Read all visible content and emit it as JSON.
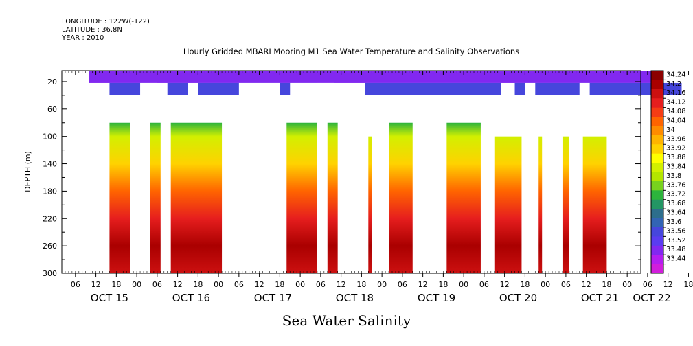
{
  "header": {
    "longitude": "LONGITUDE : 122W(-122)",
    "latitude": "LATITUDE : 36.8N",
    "year": "YEAR : 2010"
  },
  "chart_data": {
    "type": "heatmap",
    "title": "Hourly Gridded MBARI Mooring M1 Sea Water Temperature and Salinity Observations",
    "xlabel": "Sea Water Salinity",
    "ylabel": "DEPTH (m)",
    "x_range": [
      "2010-10-15T02:00",
      "2010-10-22T04:00"
    ],
    "ylim": [
      300,
      0
    ],
    "y_ticks": [
      20,
      60,
      100,
      140,
      180,
      220,
      260,
      300
    ],
    "x_hour_ticks": [
      "06",
      "12",
      "18",
      "00",
      "06",
      "12",
      "18",
      "00",
      "06",
      "12",
      "18",
      "00",
      "06",
      "12",
      "18",
      "00",
      "06",
      "12",
      "18",
      "00",
      "06",
      "12",
      "18",
      "00",
      "06",
      "12",
      "18",
      "00",
      "06",
      "12",
      "18",
      "00"
    ],
    "x_day_labels": [
      "OCT 15",
      "OCT 16",
      "OCT 17",
      "OCT 18",
      "OCT 19",
      "OCT 20",
      "OCT 21",
      "OCT 22"
    ],
    "colorbar_ticks": [
      "34.24",
      "34.2",
      "34.16",
      "34.12",
      "34.08",
      "34.04",
      "34",
      "33.96",
      "33.92",
      "33.88",
      "33.84",
      "33.8",
      "33.76",
      "33.72",
      "33.68",
      "33.64",
      "33.6",
      "33.56",
      "33.52",
      "33.48",
      "33.44"
    ],
    "colorbar_colors": [
      "#8b0000",
      "#aa0000",
      "#cc1010",
      "#e61e1e",
      "#f53c14",
      "#ff6400",
      "#ff8c00",
      "#ffb400",
      "#ffd200",
      "#ffff00",
      "#d2f000",
      "#b4e600",
      "#78d21e",
      "#2db43c",
      "#239664",
      "#2d6e8c",
      "#3264b4",
      "#4646dc",
      "#5a3cf0",
      "#8228f0",
      "#b41ef0",
      "#d21edc"
    ],
    "series_depths_m": [
      20,
      40,
      100,
      140,
      180,
      220,
      260,
      300
    ],
    "layers": [
      {
        "depth": 20,
        "value": 33.54
      },
      {
        "depth": 40,
        "value": 33.61
      },
      {
        "depth": 80,
        "value": 33.78
      },
      {
        "depth": 100,
        "value": 33.86
      },
      {
        "depth": 140,
        "value": 33.96
      },
      {
        "depth": 180,
        "value": 34.06
      },
      {
        "depth": 220,
        "value": 34.16
      },
      {
        "depth": 260,
        "value": 34.22
      },
      {
        "depth": 300,
        "value": 34.2
      }
    ],
    "surface_coverage_hours": [
      [
        8,
        174
      ]
    ],
    "surface_gaps_hours": [
      [
        23,
        28
      ],
      [
        52,
        64
      ],
      [
        67,
        80
      ],
      [
        136,
        139
      ],
      [
        152,
        155
      ]
    ],
    "mid_coverage_hours": [
      [
        14,
        26
      ],
      [
        31,
        37
      ],
      [
        40,
        75
      ],
      [
        89,
        129
      ],
      [
        133,
        182
      ]
    ],
    "deep_blocks": [
      {
        "start_hours": 14,
        "end_hours": 20,
        "top_depth": 80
      },
      {
        "start_hours": 26,
        "end_hours": 29,
        "top_depth": 80
      },
      {
        "start_hours": 32,
        "end_hours": 47,
        "top_depth": 80
      },
      {
        "start_hours": 66,
        "end_hours": 75,
        "top_depth": 80
      },
      {
        "start_hours": 78,
        "end_hours": 81,
        "top_depth": 80
      },
      {
        "start_hours": 90,
        "end_hours": 91,
        "top_depth": 100
      },
      {
        "start_hours": 96,
        "end_hours": 103,
        "top_depth": 80
      },
      {
        "start_hours": 113,
        "end_hours": 123,
        "top_depth": 80
      },
      {
        "start_hours": 127,
        "end_hours": 135,
        "top_depth": 100
      },
      {
        "start_hours": 140,
        "end_hours": 141,
        "top_depth": 100
      },
      {
        "start_hours": 147,
        "end_hours": 149,
        "top_depth": 100
      },
      {
        "start_hours": 153,
        "end_hours": 160,
        "top_depth": 100
      }
    ]
  }
}
